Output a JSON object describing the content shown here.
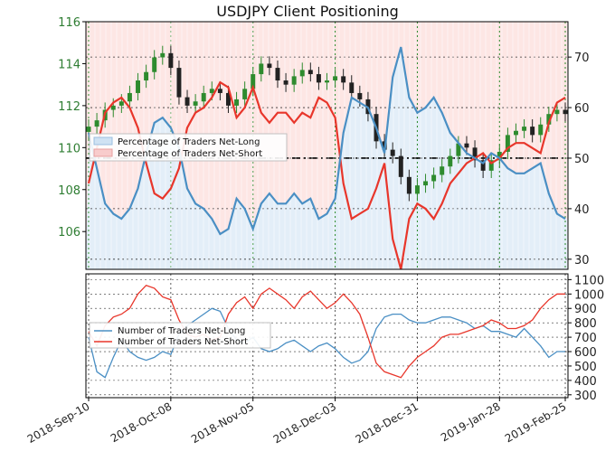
{
  "chart_data": {
    "title": "USDJPY Client Positioning",
    "x_tick_labels": [
      "2018-Sep-10",
      "2018-Oct-08",
      "2018-Nov-05",
      "2018-Dec-03",
      "2018-Dec-31",
      "2019-Jan-28",
      "2019-Feb-25"
    ],
    "top_panel": {
      "type": "candlestick+line+area",
      "price_axis": {
        "side": "left",
        "range": [
          104.2,
          116
        ],
        "ticks": [
          106,
          108,
          110,
          112,
          114,
          116
        ]
      },
      "percent_axis": {
        "side": "right",
        "range": [
          28,
          77
        ],
        "ticks": [
          30,
          40,
          50,
          60,
          70
        ]
      },
      "reference_line": 50,
      "legend_position": "upper-left",
      "legend": [
        "Percentage of Traders Net-Long",
        "Percentage of Traders Net-Short"
      ],
      "colors": {
        "net_long": "#4a8fc4",
        "net_short": "#e8362b",
        "bull_candle": "#2e8b2e",
        "bear_candle": "#222222"
      },
      "price_close": [
        111.0,
        111.3,
        111.8,
        112.0,
        112.2,
        112.6,
        113.2,
        113.6,
        114.3,
        114.5,
        113.8,
        112.4,
        112.0,
        112.2,
        112.6,
        112.8,
        112.6,
        112.0,
        112.3,
        112.8,
        113.5,
        114.0,
        113.8,
        113.2,
        113.0,
        113.4,
        113.7,
        113.5,
        113.1,
        113.2,
        113.4,
        113.1,
        112.6,
        112.3,
        111.6,
        110.3,
        109.9,
        109.6,
        108.6,
        107.8,
        108.2,
        108.4,
        108.7,
        109.1,
        109.6,
        110.2,
        110.0,
        109.4,
        108.9,
        109.4,
        109.8,
        110.6,
        110.8,
        111.0,
        110.6,
        111.1,
        111.6,
        111.8,
        111.6
      ],
      "percent_net_long": [
        55.0,
        48.0,
        41.0,
        39.0,
        38.0,
        40.0,
        44.0,
        51.0,
        57.0,
        58.0,
        56.0,
        52.0,
        44.0,
        41.0,
        40.0,
        38.0,
        35.0,
        36.0,
        42.0,
        40.0,
        36.0,
        41.0,
        43.0,
        41.0,
        41.0,
        43.0,
        41.0,
        42.0,
        38.0,
        39.0,
        42.0,
        55.0,
        62.0,
        61.0,
        60.0,
        56.0,
        51.0,
        66.0,
        72.0,
        62.0,
        59.0,
        60.0,
        62.0,
        59.0,
        55.0,
        53.0,
        51.0,
        50.0,
        49.0,
        51.0,
        50.0,
        48.0,
        47.0,
        47.0,
        48.0,
        49.0,
        43.0,
        39.0,
        38.0
      ],
      "percent_net_short": [
        45.0,
        52.0,
        59.0,
        61.0,
        62.0,
        60.0,
        56.0,
        49.0,
        43.0,
        42.0,
        44.0,
        48.0,
        56.0,
        59.0,
        60.0,
        62.0,
        65.0,
        64.0,
        58.0,
        60.0,
        64.0,
        59.0,
        57.0,
        59.0,
        59.0,
        57.0,
        59.0,
        58.0,
        62.0,
        61.0,
        58.0,
        45.0,
        38.0,
        39.0,
        40.0,
        44.0,
        49.0,
        34.0,
        28.0,
        38.0,
        41.0,
        40.0,
        38.0,
        41.0,
        45.0,
        47.0,
        49.0,
        50.0,
        51.0,
        49.0,
        50.0,
        52.0,
        53.0,
        53.0,
        52.0,
        51.0,
        57.0,
        61.0,
        62.0
      ]
    },
    "bottom_panel": {
      "type": "line",
      "axis": {
        "side": "right",
        "range": [
          280,
          1140
        ],
        "ticks": [
          300,
          400,
          500,
          600,
          700,
          800,
          900,
          1000,
          1100
        ]
      },
      "legend_position": "upper-left",
      "series": [
        {
          "name": "Number of Traders Net-Long",
          "color": "#4a8fc4",
          "values": [
            700,
            460,
            420,
            560,
            680,
            600,
            560,
            540,
            560,
            600,
            580,
            720,
            780,
            820,
            860,
            900,
            880,
            760,
            680,
            660,
            700,
            620,
            600,
            620,
            660,
            680,
            640,
            600,
            640,
            660,
            620,
            560,
            520,
            540,
            600,
            760,
            840,
            860,
            860,
            820,
            800,
            800,
            820,
            840,
            840,
            820,
            800,
            760,
            780,
            740,
            740,
            720,
            700,
            760,
            700,
            640,
            560,
            600,
            600
          ]
        },
        {
          "name": "Number of Traders Net-Short",
          "color": "#e8362b",
          "values": [
            740,
            640,
            780,
            840,
            860,
            900,
            1000,
            1060,
            1040,
            980,
            960,
            820,
            720,
            700,
            720,
            680,
            700,
            860,
            940,
            980,
            900,
            1000,
            1040,
            1000,
            960,
            900,
            980,
            1020,
            960,
            900,
            940,
            1000,
            940,
            860,
            700,
            520,
            460,
            440,
            420,
            500,
            560,
            600,
            640,
            700,
            720,
            720,
            740,
            760,
            780,
            820,
            800,
            760,
            760,
            780,
            820,
            900,
            960,
            1000,
            1000
          ]
        }
      ]
    }
  }
}
